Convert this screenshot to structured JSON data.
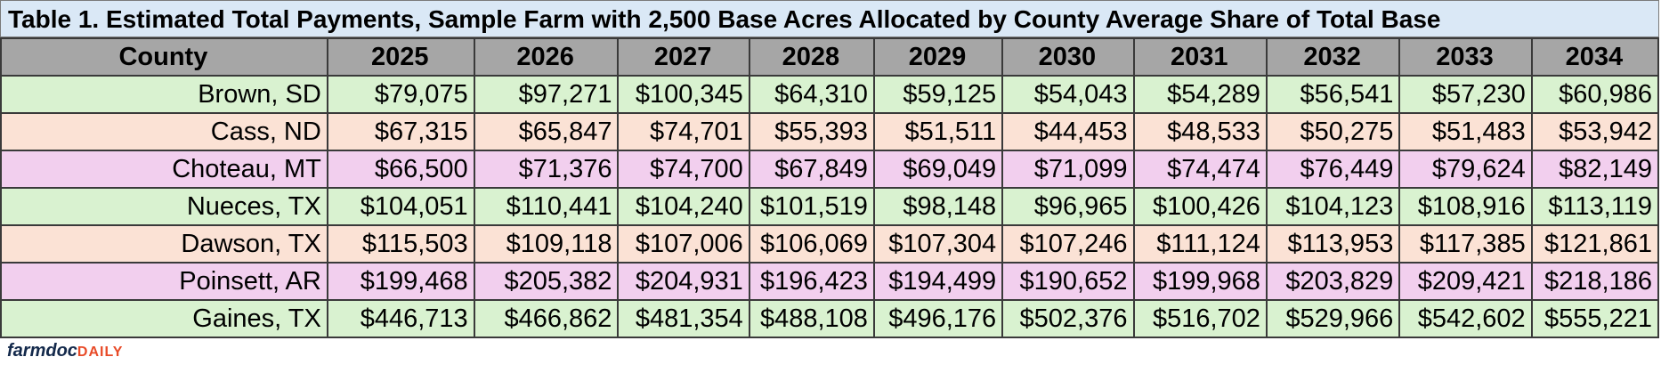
{
  "title": "Table 1. Estimated Total Payments, Sample Farm with 2,500 Base Acres Allocated by County Average Share of Total Base",
  "header": [
    "County",
    "2025",
    "2026",
    "2027",
    "2028",
    "2029",
    "2030",
    "2031",
    "2032",
    "2033",
    "2034"
  ],
  "rows": [
    {
      "color": "green",
      "cells": [
        "Brown, SD",
        "$79,075",
        "$97,271",
        "$100,345",
        "$64,310",
        "$59,125",
        "$54,043",
        "$54,289",
        "$56,541",
        "$57,230",
        "$60,986"
      ]
    },
    {
      "color": "peach",
      "cells": [
        "Cass, ND",
        "$67,315",
        "$65,847",
        "$74,701",
        "$55,393",
        "$51,511",
        "$44,453",
        "$48,533",
        "$50,275",
        "$51,483",
        "$53,942"
      ]
    },
    {
      "color": "purple",
      "cells": [
        "Choteau, MT",
        "$66,500",
        "$71,376",
        "$74,700",
        "$67,849",
        "$69,049",
        "$71,099",
        "$74,474",
        "$76,449",
        "$79,624",
        "$82,149"
      ]
    },
    {
      "color": "green",
      "cells": [
        "Nueces, TX",
        "$104,051",
        "$110,441",
        "$104,240",
        "$101,519",
        "$98,148",
        "$96,965",
        "$100,426",
        "$104,123",
        "$108,916",
        "$113,119"
      ]
    },
    {
      "color": "peach",
      "cells": [
        "Dawson, TX",
        "$115,503",
        "$109,118",
        "$107,006",
        "$106,069",
        "$107,304",
        "$107,246",
        "$111,124",
        "$113,953",
        "$117,385",
        "$121,861"
      ]
    },
    {
      "color": "purple",
      "cells": [
        "Poinsett, AR",
        "$199,468",
        "$205,382",
        "$204,931",
        "$196,423",
        "$194,499",
        "$190,652",
        "$199,968",
        "$203,829",
        "$209,421",
        "$218,186"
      ]
    },
    {
      "color": "green",
      "cells": [
        "Gaines, TX",
        "$446,713",
        "$466,862",
        "$481,354",
        "$488,108",
        "$496,176",
        "$502,376",
        "$516,702",
        "$529,966",
        "$542,602",
        "$555,221"
      ]
    }
  ],
  "logo": {
    "part1": "farmdoc",
    "part2": "DAILY"
  }
}
